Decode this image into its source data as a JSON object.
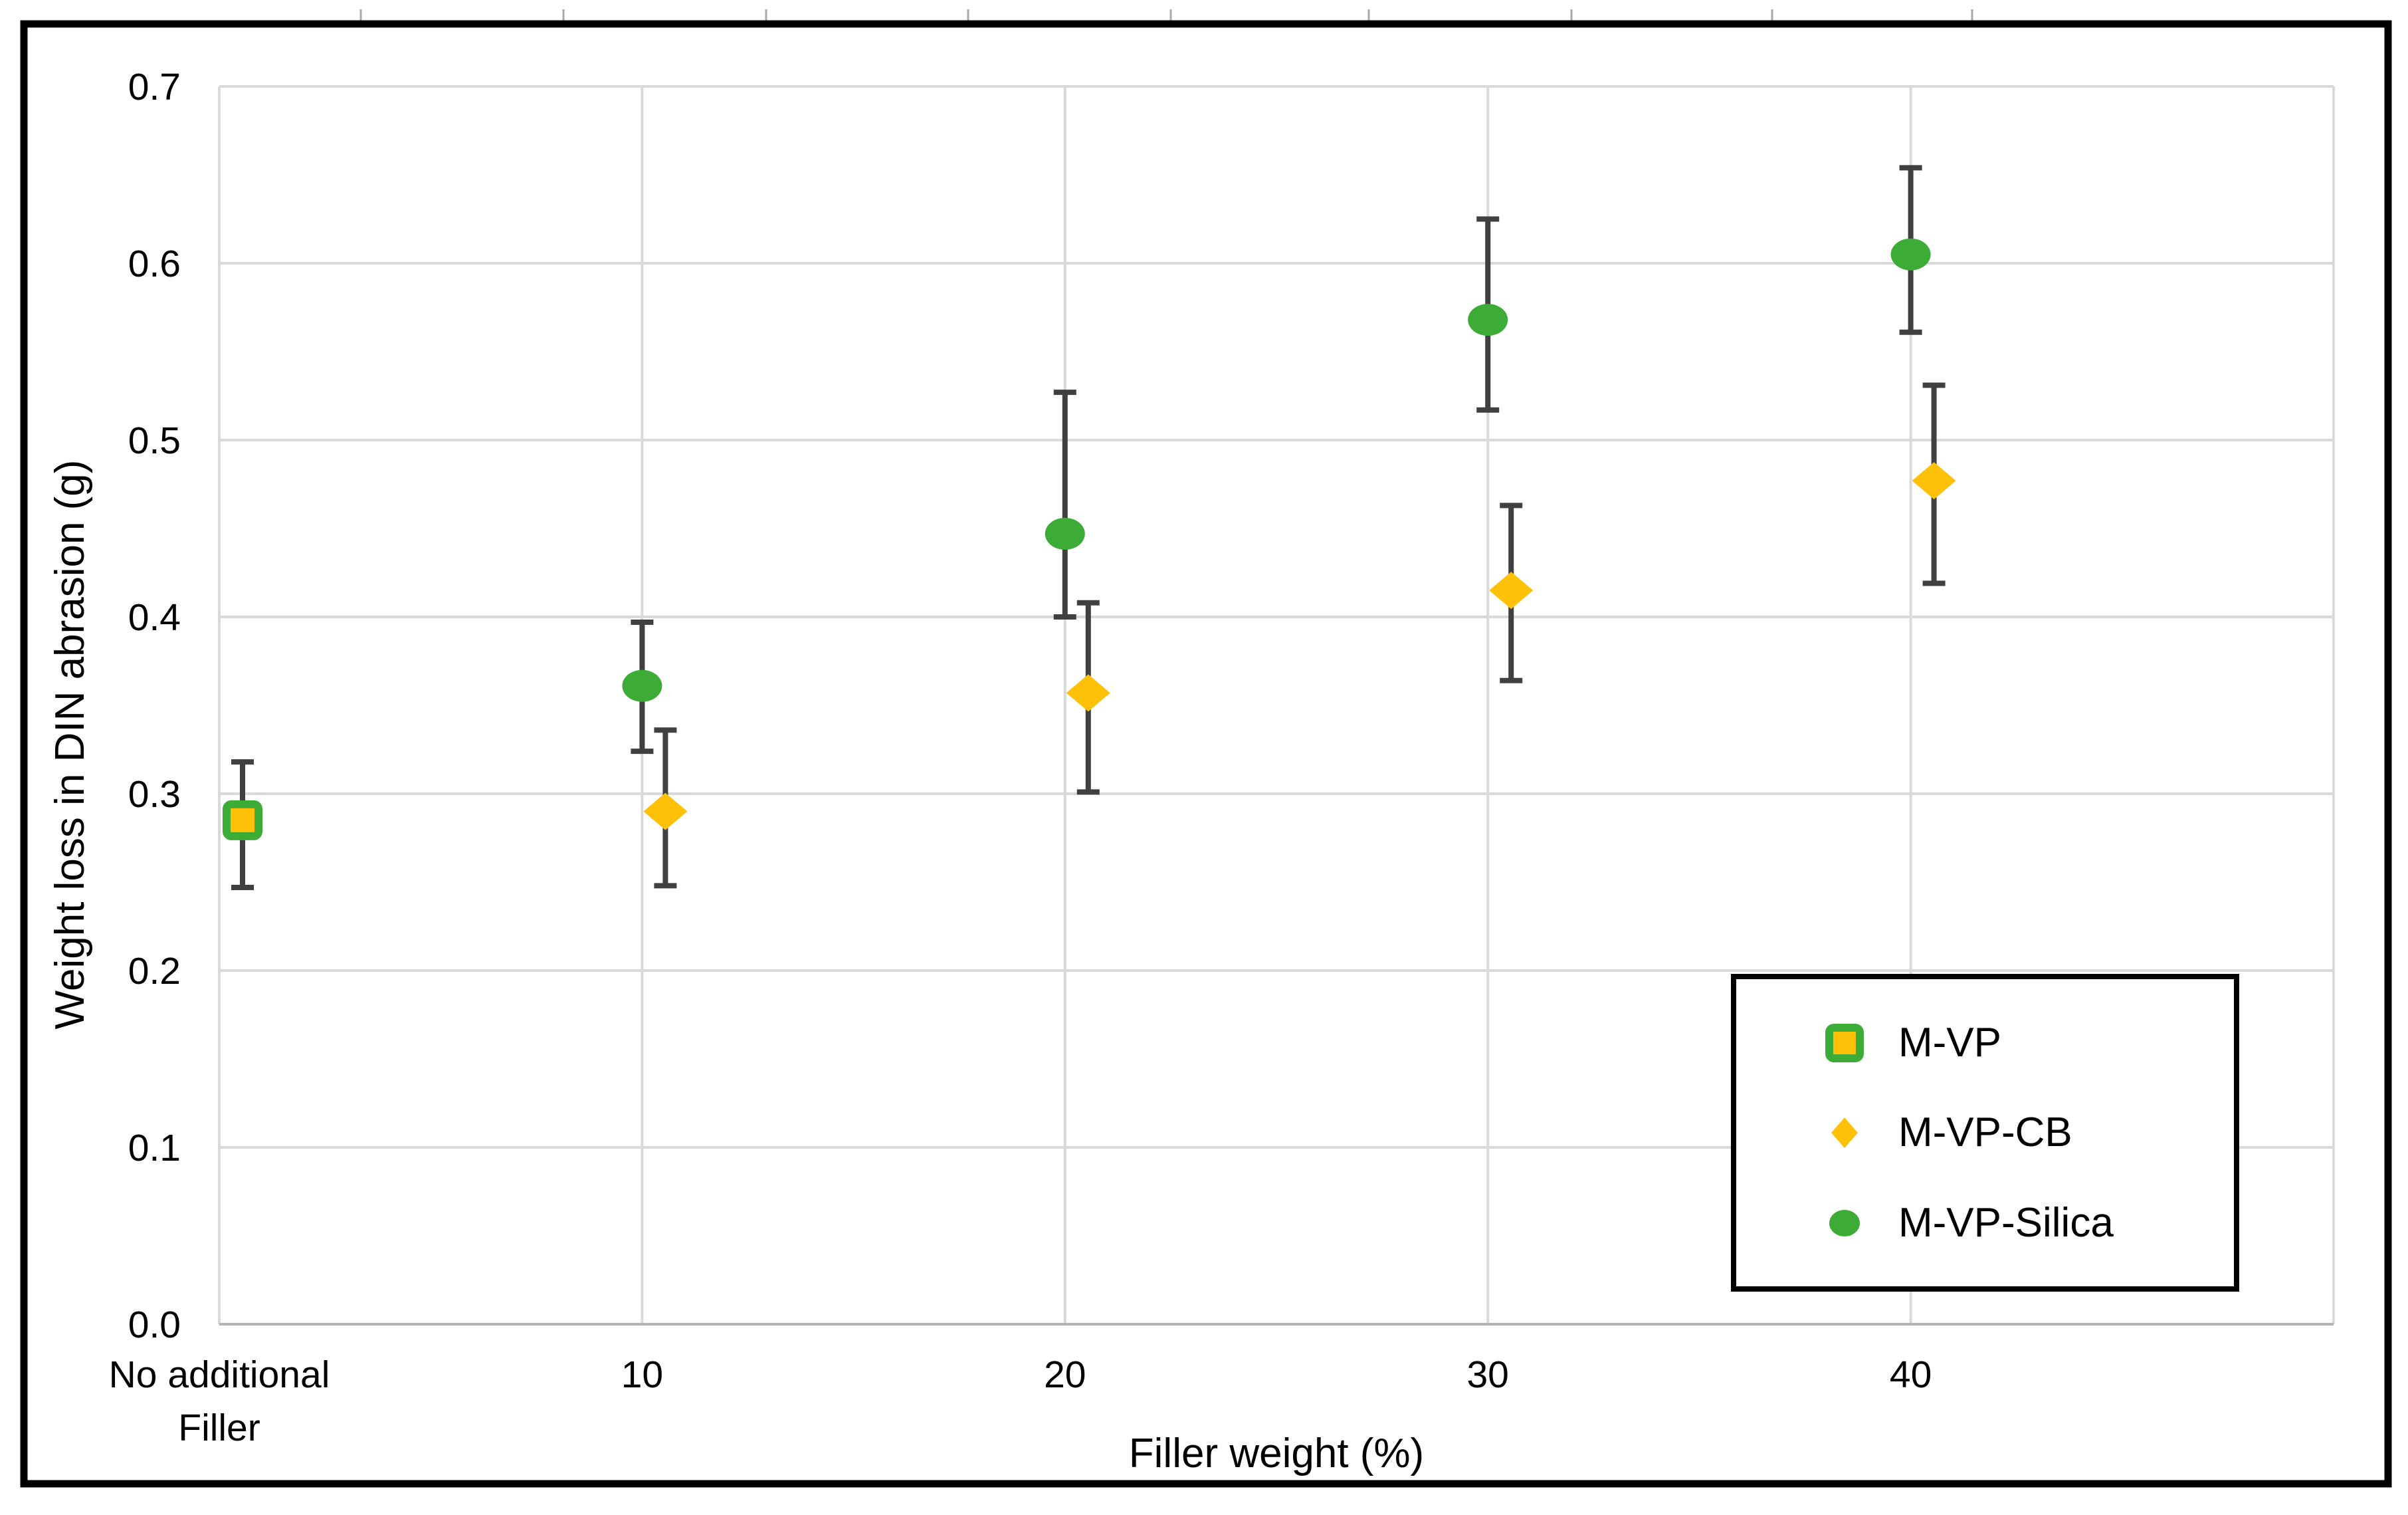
{
  "figure": {
    "background": "#FFFFFF",
    "frame_color": "#000000",
    "text_color": "#000000"
  },
  "chart_data": {
    "type": "scatter",
    "title": "",
    "xlabel": "Filler weight (%)",
    "ylabel": "Weight loss in DIN abrasion (g)",
    "grid": true,
    "legend_position": "lower right",
    "x_axis": {
      "min": 0,
      "max": 50,
      "gridline_values": [
        0,
        10,
        20,
        30,
        40,
        50
      ],
      "tick_values": [
        0,
        10,
        20,
        30,
        40
      ],
      "tick_labels": [
        [
          "No additional",
          "Filler"
        ],
        [
          "10"
        ],
        [
          "20"
        ],
        [
          "30"
        ],
        [
          "40"
        ]
      ]
    },
    "y_axis": {
      "min": 0.0,
      "max": 0.7,
      "step": 0.1,
      "tick_values": [
        0.0,
        0.1,
        0.2,
        0.3,
        0.4,
        0.5,
        0.6,
        0.7
      ],
      "tick_labels": [
        "0.0",
        "0.1",
        "0.2",
        "0.3",
        "0.4",
        "0.5",
        "0.6",
        "0.7"
      ]
    },
    "colors": {
      "green": "#3CAC37",
      "gold": "#FFC107",
      "error_bar": "#404040",
      "gridline": "#D9D9D9",
      "bottom_axis": "#B3B3B3",
      "artifact_tick": "#A9A9A9"
    },
    "series": [
      {
        "name": "M-VP",
        "marker": "square",
        "fill": "#FFC107",
        "edge": "#3CAC37",
        "points": [
          {
            "x": 0.55,
            "y": 0.285,
            "err_lo": 0.247,
            "err_hi": 0.318
          }
        ]
      },
      {
        "name": "M-VP-CB",
        "marker": "diamond",
        "fill": "#FFC107",
        "edge": "#FFC107",
        "points": [
          {
            "x": 10.55,
            "y": 0.29,
            "err_lo": 0.248,
            "err_hi": 0.336
          },
          {
            "x": 20.55,
            "y": 0.357,
            "err_lo": 0.301,
            "err_hi": 0.408
          },
          {
            "x": 30.55,
            "y": 0.415,
            "err_lo": 0.364,
            "err_hi": 0.463
          },
          {
            "x": 40.55,
            "y": 0.477,
            "err_lo": 0.419,
            "err_hi": 0.531
          }
        ]
      },
      {
        "name": "M-VP-Silica",
        "marker": "circle",
        "fill": "#3CAC37",
        "edge": "#3CAC37",
        "points": [
          {
            "x": 10,
            "y": 0.361,
            "err_lo": 0.324,
            "err_hi": 0.397
          },
          {
            "x": 20,
            "y": 0.447,
            "err_lo": 0.4,
            "err_hi": 0.527
          },
          {
            "x": 30,
            "y": 0.568,
            "err_lo": 0.517,
            "err_hi": 0.625
          },
          {
            "x": 40,
            "y": 0.605,
            "err_lo": 0.561,
            "err_hi": 0.654
          }
        ]
      }
    ],
    "artifact_top_ticks_x": [
      543,
      848,
      1153,
      1457,
      1762,
      2060,
      2365,
      2667,
      2968
    ]
  },
  "legend": {
    "items": [
      "M-VP",
      "M-VP-CB",
      "M-VP-Silica"
    ]
  }
}
